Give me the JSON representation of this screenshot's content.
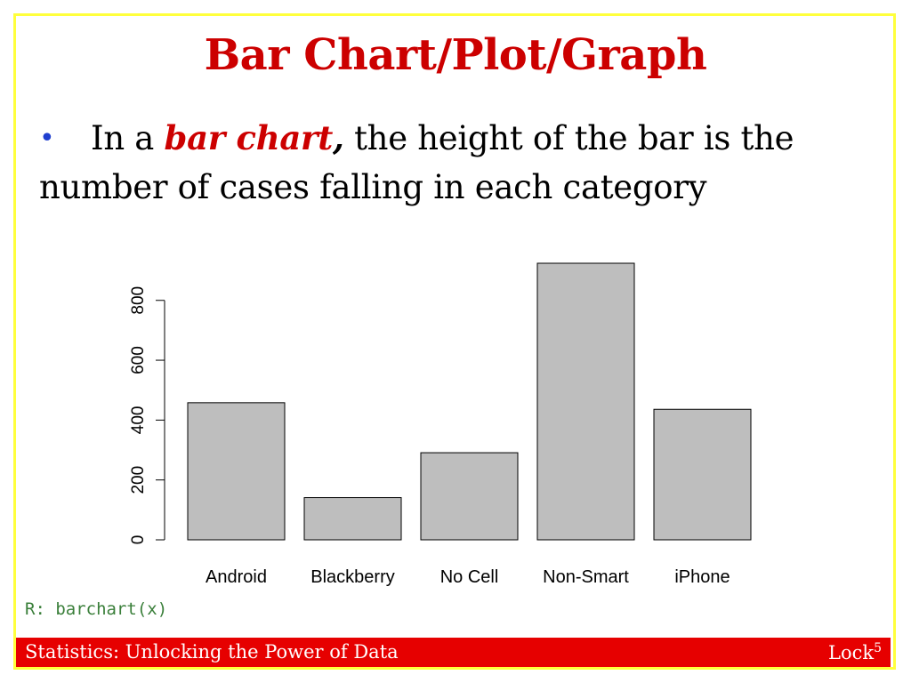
{
  "slide": {
    "title": "Bar Chart/Plot/Graph",
    "bullet": {
      "marker": "•",
      "prefix": "In a ",
      "emphasis": "bar chart",
      "comma": ",",
      "suffix": " the height of the bar is the number of cases falling in each category"
    },
    "code_note": "R: barchart(x)",
    "footer_left": "Statistics: Unlocking the Power of Data",
    "footer_right_text": "Lock",
    "footer_right_sup": "5"
  },
  "colors": {
    "title": "#cc0000",
    "emphasis": "#cc0000",
    "bar_fill": "#bebebe",
    "footer_bg": "#e60000",
    "frame_border": "#ffff3c",
    "code_text": "#3a7f3a"
  },
  "chart_data": {
    "type": "bar",
    "categories": [
      "Android",
      "Blackberry",
      "No Cell",
      "Non-Smart",
      "iPhone"
    ],
    "values": [
      458,
      141,
      291,
      924,
      436
    ],
    "yticks": [
      0,
      200,
      400,
      600,
      800
    ],
    "ylim": [
      0,
      924
    ],
    "title": "",
    "xlabel": "",
    "ylabel": "",
    "grid": false,
    "legend": "none"
  }
}
